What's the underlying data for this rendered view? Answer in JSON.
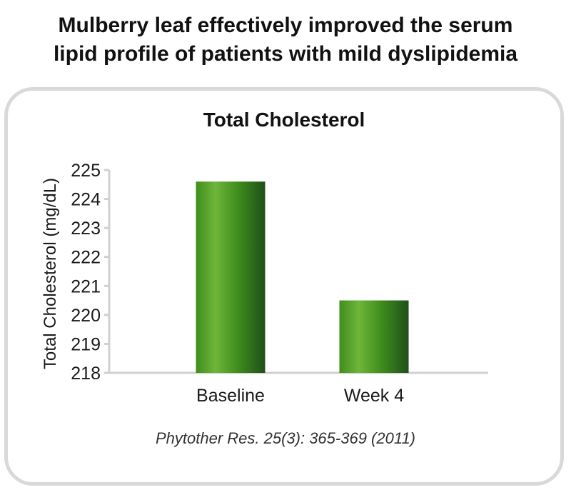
{
  "header": {
    "line1": "Mulberry leaf effectively improved the serum",
    "line2": "lipid profile of patients with mild dyslipidemia"
  },
  "citation": "Phytother Res. 25(3): 365-369 (2011)",
  "colors": {
    "bar_light": "#6fb53a",
    "bar_mid": "#3f8e1c",
    "bar_dark": "#1f4f1a",
    "axis": "#d0d0d0",
    "panel_border": "#d9d9d9"
  },
  "chart_data": {
    "type": "bar",
    "title": "Total Cholesterol",
    "xlabel": "",
    "ylabel": "Total Cholesterol (mg/dL)",
    "categories": [
      "Baseline",
      "Week 4"
    ],
    "values": [
      224.6,
      220.5
    ],
    "ylim": [
      218,
      225
    ],
    "yticks": [
      218,
      219,
      220,
      221,
      222,
      223,
      224,
      225
    ],
    "grid": false
  }
}
